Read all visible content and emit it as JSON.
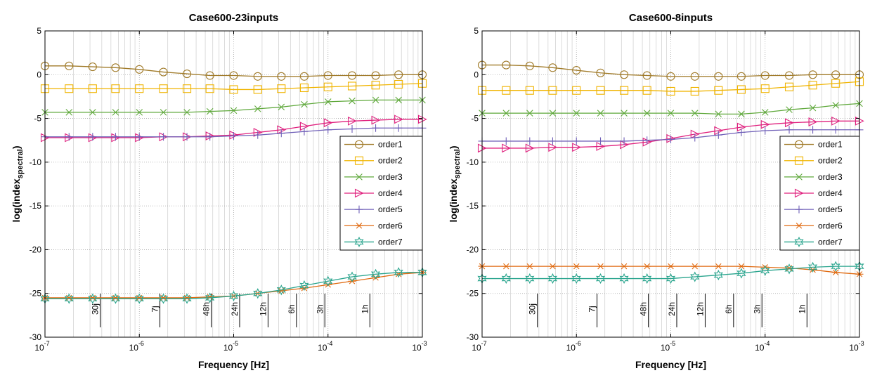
{
  "chart_data": [
    {
      "type": "line",
      "title": "Case600-23inputs",
      "xlabel": "Frequency [Hz]",
      "ylabel_main": "log(index",
      "ylabel_sub": "spectral",
      "ylabel_end": ")",
      "xscale": "log",
      "xlim": [
        1e-07,
        0.001
      ],
      "ylim": [
        -30,
        5
      ],
      "grid": true,
      "legend_position": "right",
      "xtick_labels": [
        {
          "x": 1e-07,
          "base": "10",
          "exp": "-7"
        },
        {
          "x": 1e-06,
          "base": "10",
          "exp": "-6"
        },
        {
          "x": 1e-05,
          "base": "10",
          "exp": "-5"
        },
        {
          "x": 0.0001,
          "base": "10",
          "exp": "-4"
        },
        {
          "x": 0.001,
          "base": "10",
          "exp": "-3"
        }
      ],
      "ytick_labels": [
        {
          "y": 5,
          "label": "5"
        },
        {
          "y": 0,
          "label": "0"
        },
        {
          "y": -5,
          "label": "-5"
        },
        {
          "y": -10,
          "label": "-10"
        },
        {
          "y": -15,
          "label": "-15"
        },
        {
          "y": -20,
          "label": "-20"
        },
        {
          "y": -25,
          "label": "-25"
        },
        {
          "y": -30,
          "label": "-30"
        }
      ],
      "annotations": [
        {
          "x": 3.858e-07,
          "label": "30j"
        },
        {
          "x": 1.653e-06,
          "label": "7j"
        },
        {
          "x": 5.787e-06,
          "label": "48h"
        },
        {
          "x": 1.157e-05,
          "label": "24h"
        },
        {
          "x": 2.315e-05,
          "label": "12h"
        },
        {
          "x": 4.63e-05,
          "label": "6h"
        },
        {
          "x": 9.259e-05,
          "label": "3h"
        },
        {
          "x": 0.0002778,
          "label": "1h"
        }
      ],
      "x": [
        1e-07,
        1.8e-07,
        3.2e-07,
        5.6e-07,
        1e-06,
        1.8e-06,
        3.2e-06,
        5.6e-06,
        1e-05,
        1.8e-05,
        3.2e-05,
        5.6e-05,
        0.0001,
        0.00018,
        0.00032,
        0.00056,
        0.001
      ],
      "series": [
        {
          "name": "order1",
          "color": "#a07a28",
          "marker": "circle",
          "values": [
            1.0,
            1.0,
            0.9,
            0.8,
            0.6,
            0.3,
            0.1,
            -0.1,
            -0.1,
            -0.2,
            -0.2,
            -0.2,
            -0.1,
            -0.1,
            -0.1,
            0.0,
            0.0
          ]
        },
        {
          "name": "order2",
          "color": "#f0b400",
          "marker": "square",
          "values": [
            -1.6,
            -1.6,
            -1.6,
            -1.6,
            -1.6,
            -1.6,
            -1.6,
            -1.6,
            -1.7,
            -1.7,
            -1.6,
            -1.5,
            -1.4,
            -1.3,
            -1.2,
            -1.1,
            -1.0
          ]
        },
        {
          "name": "order3",
          "color": "#5ea83a",
          "marker": "x",
          "values": [
            -4.3,
            -4.3,
            -4.3,
            -4.3,
            -4.3,
            -4.3,
            -4.3,
            -4.2,
            -4.1,
            -3.9,
            -3.7,
            -3.4,
            -3.1,
            -3.0,
            -2.9,
            -2.9,
            -2.9
          ]
        },
        {
          "name": "order4",
          "color": "#e0207e",
          "marker": "triangle-right",
          "values": [
            -7.2,
            -7.2,
            -7.2,
            -7.2,
            -7.2,
            -7.1,
            -7.1,
            -7.0,
            -6.9,
            -6.6,
            -6.3,
            -5.9,
            -5.5,
            -5.3,
            -5.2,
            -5.1,
            -5.1
          ]
        },
        {
          "name": "order5",
          "color": "#7060b8",
          "marker": "plus",
          "values": [
            -7.1,
            -7.1,
            -7.1,
            -7.1,
            -7.1,
            -7.1,
            -7.1,
            -7.1,
            -7.0,
            -6.9,
            -6.7,
            -6.5,
            -6.3,
            -6.2,
            -6.1,
            -6.1,
            -6.1
          ]
        },
        {
          "name": "order6",
          "color": "#e06a10",
          "marker": "asterisk",
          "values": [
            -25.5,
            -25.5,
            -25.5,
            -25.5,
            -25.5,
            -25.5,
            -25.5,
            -25.4,
            -25.3,
            -25.0,
            -24.7,
            -24.4,
            -24.0,
            -23.6,
            -23.2,
            -22.8,
            -22.6
          ]
        },
        {
          "name": "order7",
          "color": "#2aa58e",
          "marker": "star",
          "values": [
            -25.6,
            -25.6,
            -25.6,
            -25.6,
            -25.6,
            -25.6,
            -25.6,
            -25.5,
            -25.3,
            -25.0,
            -24.6,
            -24.1,
            -23.6,
            -23.1,
            -22.8,
            -22.6,
            -22.6
          ]
        }
      ]
    },
    {
      "type": "line",
      "title": "Case600-8inputs",
      "xlabel": "Frequency [Hz]",
      "ylabel_main": "log(index",
      "ylabel_sub": "spectral",
      "ylabel_end": ")",
      "xscale": "log",
      "xlim": [
        1e-07,
        0.001
      ],
      "ylim": [
        -30,
        5
      ],
      "grid": true,
      "legend_position": "right",
      "xtick_labels": [
        {
          "x": 1e-07,
          "base": "10",
          "exp": "-7"
        },
        {
          "x": 1e-06,
          "base": "10",
          "exp": "-6"
        },
        {
          "x": 1e-05,
          "base": "10",
          "exp": "-5"
        },
        {
          "x": 0.0001,
          "base": "10",
          "exp": "-4"
        },
        {
          "x": 0.001,
          "base": "10",
          "exp": "-3"
        }
      ],
      "ytick_labels": [
        {
          "y": 5,
          "label": "5"
        },
        {
          "y": 0,
          "label": "0"
        },
        {
          "y": -5,
          "label": "-5"
        },
        {
          "y": -10,
          "label": "-10"
        },
        {
          "y": -15,
          "label": "-15"
        },
        {
          "y": -20,
          "label": "-20"
        },
        {
          "y": -25,
          "label": "-25"
        },
        {
          "y": -30,
          "label": "-30"
        }
      ],
      "annotations": [
        {
          "x": 3.858e-07,
          "label": "30j"
        },
        {
          "x": 1.653e-06,
          "label": "7j"
        },
        {
          "x": 5.787e-06,
          "label": "48h"
        },
        {
          "x": 1.157e-05,
          "label": "24h"
        },
        {
          "x": 2.315e-05,
          "label": "12h"
        },
        {
          "x": 4.63e-05,
          "label": "6h"
        },
        {
          "x": 9.259e-05,
          "label": "3h"
        },
        {
          "x": 0.0002778,
          "label": "1h"
        }
      ],
      "x": [
        1e-07,
        1.8e-07,
        3.2e-07,
        5.6e-07,
        1e-06,
        1.8e-06,
        3.2e-06,
        5.6e-06,
        1e-05,
        1.8e-05,
        3.2e-05,
        5.6e-05,
        0.0001,
        0.00018,
        0.00032,
        0.00056,
        0.001
      ],
      "series": [
        {
          "name": "order1",
          "color": "#a07a28",
          "marker": "circle",
          "values": [
            1.1,
            1.1,
            1.0,
            0.8,
            0.5,
            0.2,
            0.0,
            -0.1,
            -0.2,
            -0.2,
            -0.2,
            -0.2,
            -0.1,
            -0.1,
            0.0,
            0.0,
            0.0
          ]
        },
        {
          "name": "order2",
          "color": "#f0b400",
          "marker": "square",
          "values": [
            -1.8,
            -1.8,
            -1.8,
            -1.8,
            -1.8,
            -1.8,
            -1.8,
            -1.8,
            -1.9,
            -1.9,
            -1.8,
            -1.7,
            -1.6,
            -1.4,
            -1.2,
            -1.0,
            -0.8
          ]
        },
        {
          "name": "order3",
          "color": "#5ea83a",
          "marker": "x",
          "values": [
            -4.4,
            -4.4,
            -4.4,
            -4.4,
            -4.4,
            -4.4,
            -4.4,
            -4.4,
            -4.4,
            -4.4,
            -4.5,
            -4.5,
            -4.3,
            -4.0,
            -3.8,
            -3.5,
            -3.3
          ]
        },
        {
          "name": "order4",
          "color": "#e0207e",
          "marker": "triangle-right",
          "values": [
            -8.4,
            -8.4,
            -8.4,
            -8.3,
            -8.3,
            -8.2,
            -8.0,
            -7.7,
            -7.3,
            -6.8,
            -6.4,
            -6.0,
            -5.7,
            -5.5,
            -5.4,
            -5.3,
            -5.3
          ]
        },
        {
          "name": "order5",
          "color": "#7060b8",
          "marker": "plus",
          "values": [
            -7.6,
            -7.6,
            -7.6,
            -7.6,
            -7.6,
            -7.6,
            -7.6,
            -7.5,
            -7.4,
            -7.2,
            -6.9,
            -6.6,
            -6.4,
            -6.3,
            -6.3,
            -6.3,
            -6.3
          ]
        },
        {
          "name": "order6",
          "color": "#e06a10",
          "marker": "asterisk",
          "values": [
            -21.9,
            -21.9,
            -21.9,
            -21.9,
            -21.9,
            -21.9,
            -21.9,
            -21.9,
            -21.9,
            -21.9,
            -21.9,
            -21.9,
            -22.0,
            -22.1,
            -22.3,
            -22.6,
            -22.8
          ]
        },
        {
          "name": "order7",
          "color": "#2aa58e",
          "marker": "star",
          "values": [
            -23.3,
            -23.3,
            -23.3,
            -23.3,
            -23.3,
            -23.3,
            -23.3,
            -23.3,
            -23.3,
            -23.1,
            -22.9,
            -22.7,
            -22.4,
            -22.2,
            -22.0,
            -21.9,
            -21.9
          ]
        }
      ]
    }
  ]
}
